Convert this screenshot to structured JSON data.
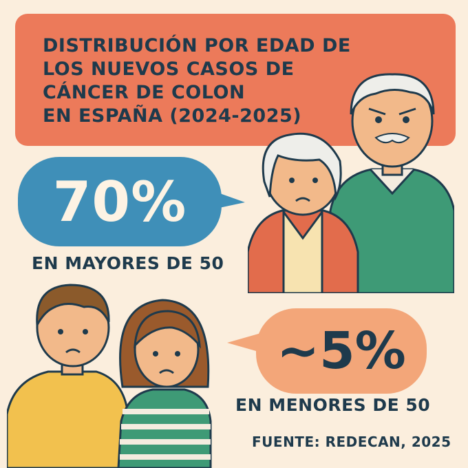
{
  "title": {
    "line1": "DISTRIBUCIÓN POR EDAD DE",
    "line2": "LOS NUEVOS CASOS DE",
    "line3": "CÁNCER DE COLON",
    "line4": "EN ESPAÑA (2024-2025)"
  },
  "stats": {
    "older": {
      "value": "70%",
      "caption": "EN MAYORES DE 50"
    },
    "younger": {
      "value": "~5%",
      "caption": "EN MENORES DE 50"
    }
  },
  "source": "FUENTE: REDECAN, 2025",
  "colors": {
    "background": "#fbeedd",
    "title_box": "#ec7a5a",
    "bubble_older": "#3f8fb8",
    "bubble_younger": "#f3a679",
    "text": "#1e3a4c"
  },
  "icons": [
    "elderly-couple-illustration",
    "young-couple-illustration"
  ]
}
